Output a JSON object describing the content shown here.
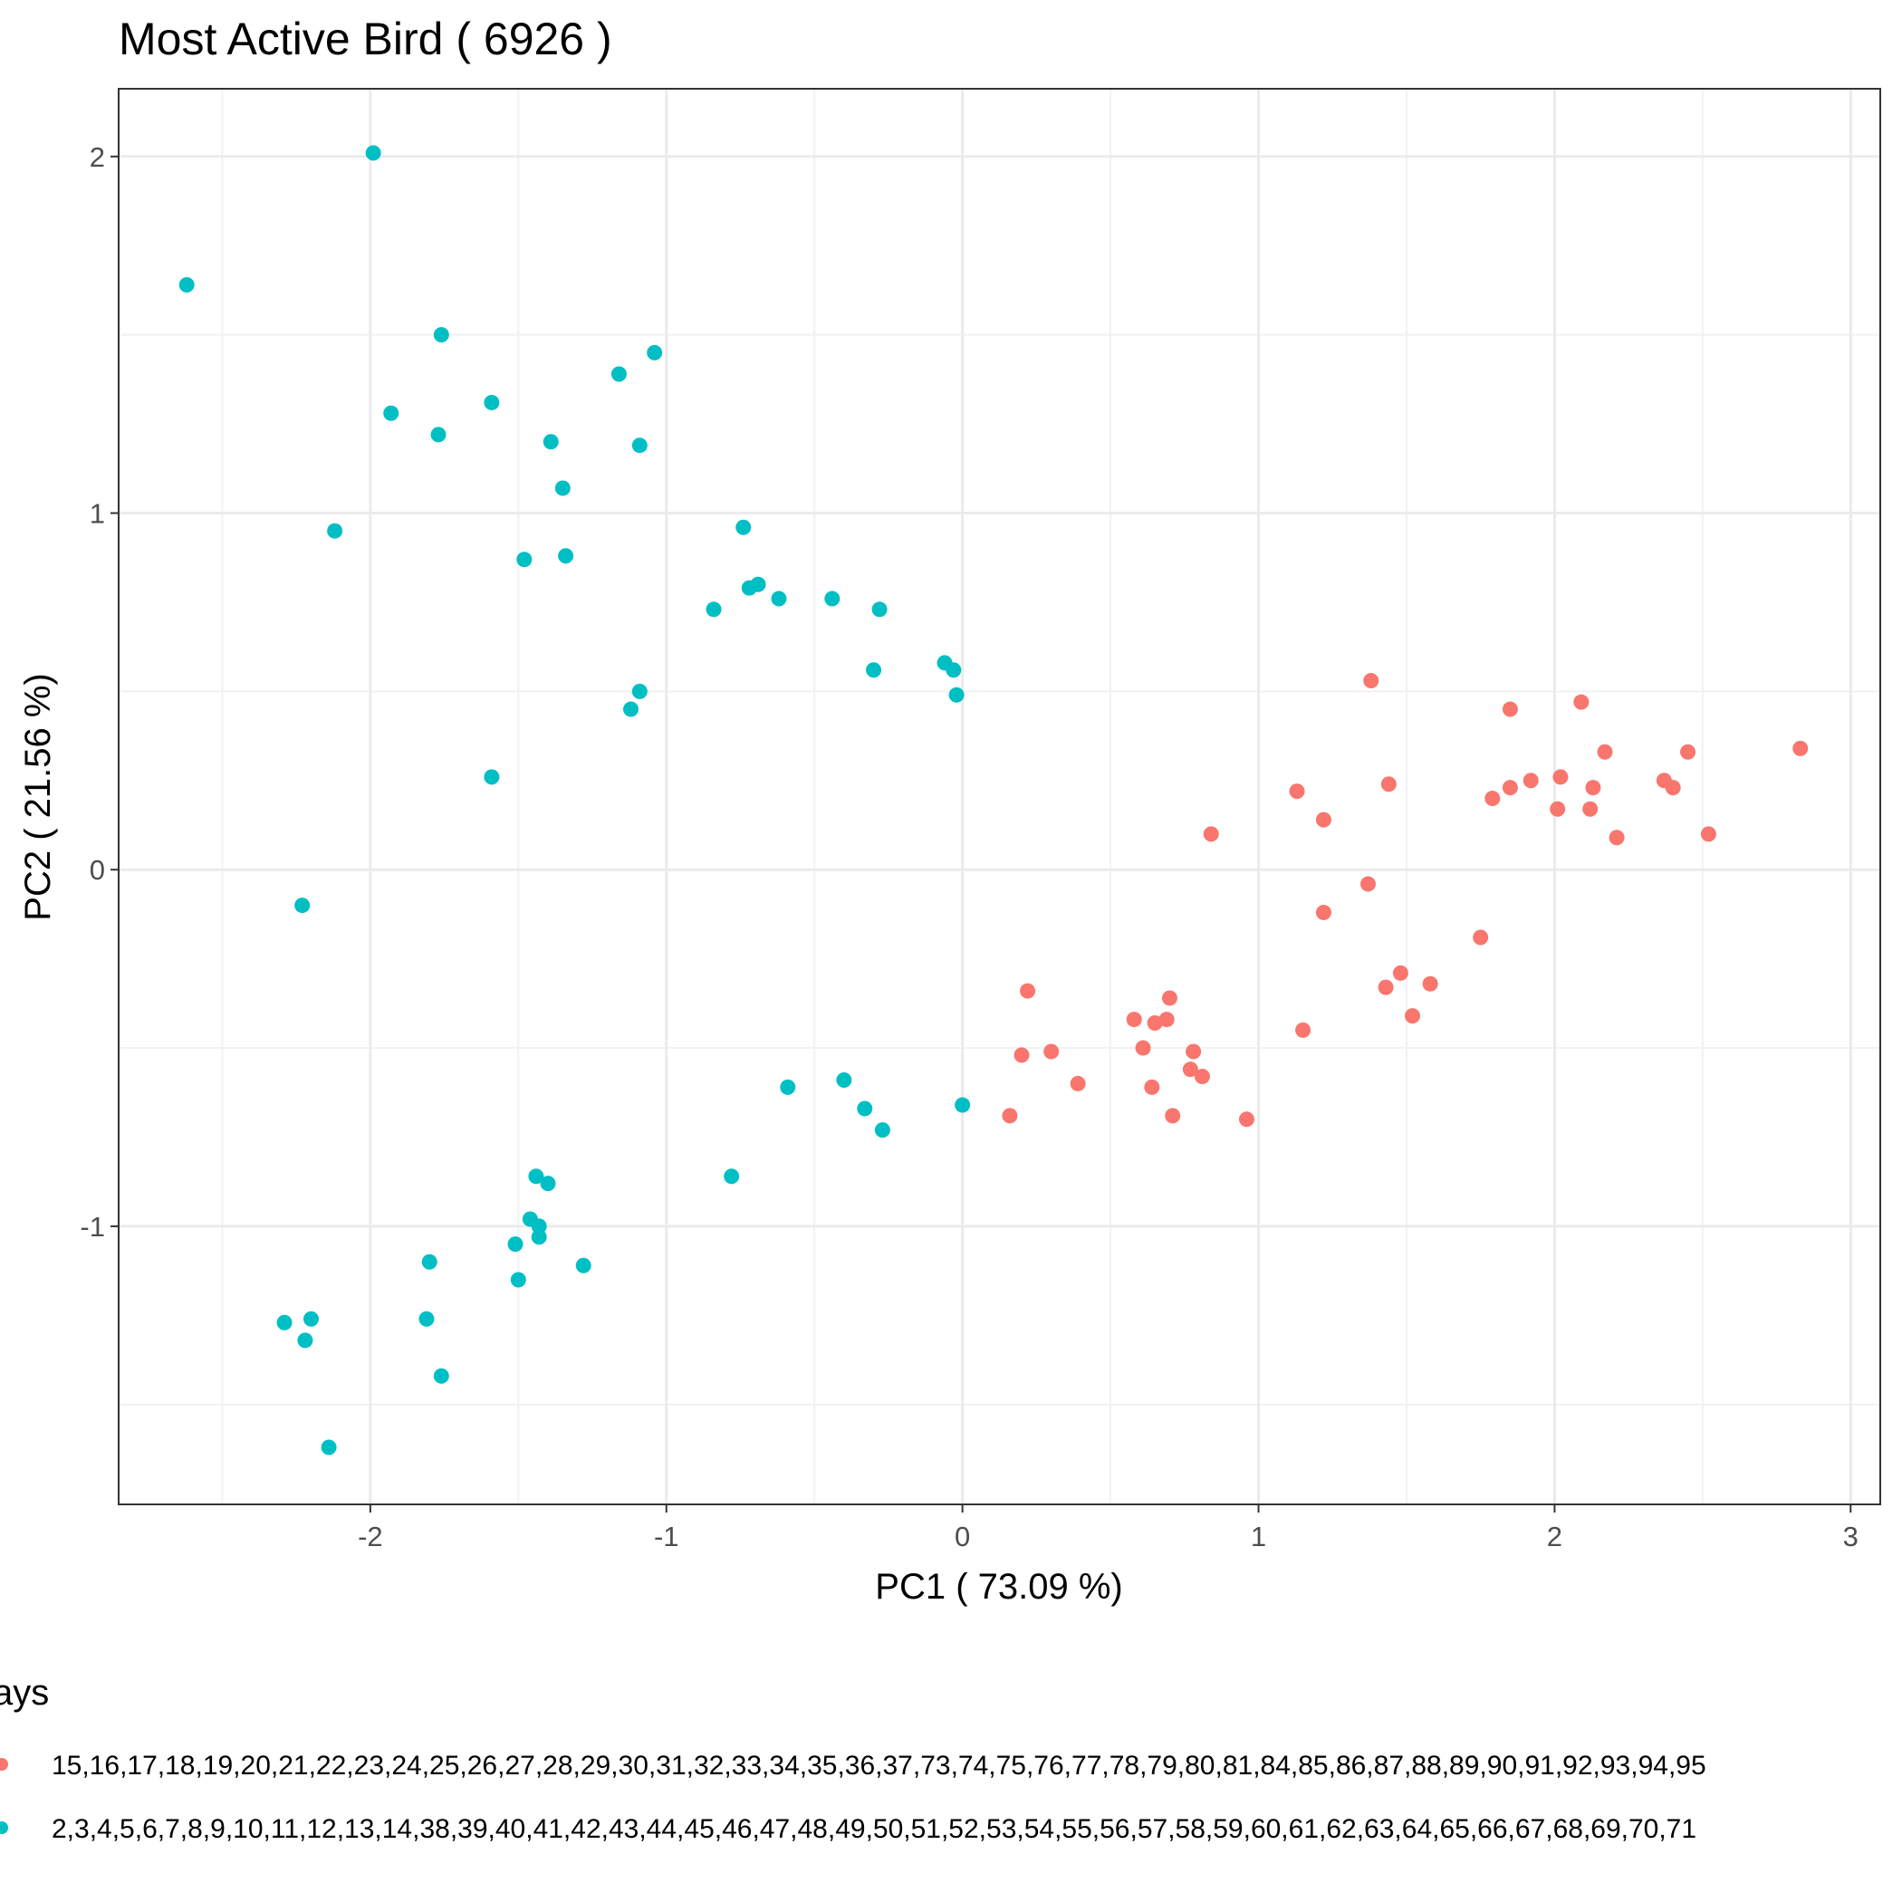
{
  "chart_data": {
    "type": "scatter",
    "title": "Most Active Bird ( 6926 )",
    "xlabel": "PC1 ( 73.09 %)",
    "ylabel": "PC2 ( 21.56 %)",
    "xlim": [
      -2.85,
      3.1
    ],
    "ylim": [
      -1.78,
      2.19
    ],
    "xticks": [
      -2,
      -1,
      0,
      1,
      2,
      3
    ],
    "yticks": [
      -1,
      0,
      1,
      2
    ],
    "grid": true,
    "legend_position": "bottom",
    "legend_title": "ays",
    "series": [
      {
        "name": "15,16,17,18,19,20,21,22,23,24,25,26,27,28,29,30,31,32,33,34,35,36,37,73,74,75,76,77,78,79,80,81,84,85,86,87,88,89,90,91,92,93,94,95",
        "color": "#F8766D",
        "points": [
          [
            2.83,
            0.34
          ],
          [
            2.52,
            0.1
          ],
          [
            2.45,
            0.33
          ],
          [
            2.4,
            0.23
          ],
          [
            2.37,
            0.25
          ],
          [
            2.21,
            0.09
          ],
          [
            2.17,
            0.33
          ],
          [
            2.13,
            0.23
          ],
          [
            2.12,
            0.17
          ],
          [
            2.09,
            0.47
          ],
          [
            2.02,
            0.26
          ],
          [
            2.01,
            0.17
          ],
          [
            1.92,
            0.25
          ],
          [
            1.85,
            0.45
          ],
          [
            1.85,
            0.23
          ],
          [
            1.79,
            0.2
          ],
          [
            1.75,
            -0.19
          ],
          [
            1.58,
            -0.32
          ],
          [
            1.52,
            -0.41
          ],
          [
            1.48,
            -0.29
          ],
          [
            1.44,
            0.24
          ],
          [
            1.43,
            -0.33
          ],
          [
            1.38,
            0.53
          ],
          [
            1.37,
            -0.04
          ],
          [
            1.22,
            0.14
          ],
          [
            1.22,
            -0.12
          ],
          [
            1.15,
            -0.45
          ],
          [
            1.13,
            0.22
          ],
          [
            0.96,
            -0.7
          ],
          [
            0.84,
            0.1
          ],
          [
            0.81,
            -0.58
          ],
          [
            0.78,
            -0.51
          ],
          [
            0.77,
            -0.56
          ],
          [
            0.71,
            -0.69
          ],
          [
            0.7,
            -0.36
          ],
          [
            0.69,
            -0.42
          ],
          [
            0.65,
            -0.43
          ],
          [
            0.64,
            -0.61
          ],
          [
            0.61,
            -0.5
          ],
          [
            0.58,
            -0.42
          ],
          [
            0.39,
            -0.6
          ],
          [
            0.3,
            -0.51
          ],
          [
            0.22,
            -0.34
          ],
          [
            0.2,
            -0.52
          ],
          [
            0.16,
            -0.69
          ]
        ]
      },
      {
        "name": "2,3,4,5,6,7,8,9,10,11,12,13,14,38,39,40,41,42,43,44,45,46,47,48,49,50,51,52,53,54,55,56,57,58,59,60,61,62,63,64,65,66,67,68,69,70,71",
        "color": "#00BFC4",
        "points": [
          [
            -2.62,
            1.64
          ],
          [
            -1.99,
            2.01
          ],
          [
            -1.76,
            1.5
          ],
          [
            -1.93,
            1.28
          ],
          [
            -1.77,
            1.22
          ],
          [
            -1.59,
            1.31
          ],
          [
            -1.39,
            1.2
          ],
          [
            -1.35,
            1.07
          ],
          [
            -1.16,
            1.39
          ],
          [
            -1.04,
            1.45
          ],
          [
            -1.09,
            1.19
          ],
          [
            -2.12,
            0.95
          ],
          [
            -1.48,
            0.87
          ],
          [
            -1.34,
            0.88
          ],
          [
            -0.74,
            0.96
          ],
          [
            -0.69,
            0.8
          ],
          [
            -0.72,
            0.79
          ],
          [
            -0.62,
            0.76
          ],
          [
            -0.84,
            0.73
          ],
          [
            -0.44,
            0.76
          ],
          [
            -0.28,
            0.73
          ],
          [
            -0.3,
            0.56
          ],
          [
            -0.06,
            0.58
          ],
          [
            -0.03,
            0.56
          ],
          [
            -0.02,
            0.49
          ],
          [
            -1.09,
            0.5
          ],
          [
            -1.12,
            0.45
          ],
          [
            -1.59,
            0.26
          ],
          [
            -2.23,
            -0.1
          ],
          [
            -0.59,
            -0.61
          ],
          [
            -0.4,
            -0.59
          ],
          [
            -0.33,
            -0.67
          ],
          [
            -0.27,
            -0.73
          ],
          [
            0.0,
            -0.66
          ],
          [
            -0.78,
            -0.86
          ],
          [
            -1.44,
            -0.86
          ],
          [
            -1.4,
            -0.88
          ],
          [
            -1.46,
            -0.98
          ],
          [
            -1.43,
            -1.0
          ],
          [
            -1.43,
            -1.03
          ],
          [
            -1.51,
            -1.05
          ],
          [
            -1.28,
            -1.11
          ],
          [
            -1.5,
            -1.15
          ],
          [
            -1.8,
            -1.1
          ],
          [
            -2.2,
            -1.26
          ],
          [
            -2.29,
            -1.27
          ],
          [
            -2.22,
            -1.32
          ],
          [
            -1.81,
            -1.26
          ],
          [
            -1.76,
            -1.42
          ],
          [
            -2.14,
            -1.62
          ]
        ]
      }
    ]
  }
}
